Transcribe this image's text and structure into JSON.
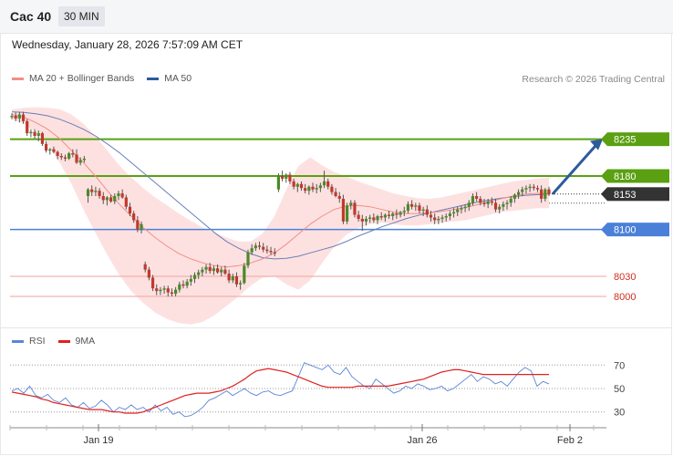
{
  "header": {
    "symbol": "Cac 40",
    "interval": "30 MIN",
    "datetime": "Wednesday, January 28, 2026 7:57:09 AM CET"
  },
  "main_legend": {
    "items": [
      {
        "label": "MA 20 + Bollinger Bands",
        "color": "#f28e86"
      },
      {
        "label": "MA 50",
        "color": "#2d5b9c"
      }
    ],
    "credit": "Research © 2026 Trading Central"
  },
  "rsi_legend": {
    "items": [
      {
        "label": "RSI",
        "color": "#5b86d6"
      },
      {
        "label": "9MA",
        "color": "#e02020"
      }
    ]
  },
  "colors": {
    "up": "#4a8a2a",
    "down": "#c0392b",
    "wick": "#555555",
    "resistance": "#5aa012",
    "support_blue": "#4a80d8",
    "support_red": "#f2a29a",
    "band_fill": "#fde1e1",
    "price_box": "#333333",
    "arrow": "#2d5b9c"
  },
  "chart_data": [
    {
      "type": "candlestick",
      "title": "Cac 40",
      "x_ticks": [
        "Jan 19",
        "Jan 26",
        "Feb 2"
      ],
      "ylim": [
        7955,
        8300
      ],
      "last_price": 8153,
      "levels": [
        {
          "value": 8235,
          "label": "8235",
          "kind": "resistance"
        },
        {
          "value": 8180,
          "label": "8180",
          "kind": "resistance"
        },
        {
          "value": 8153,
          "label": "8153",
          "kind": "last"
        },
        {
          "value": 8100,
          "label": "8100",
          "kind": "support"
        },
        {
          "value": 8030,
          "label": "8030",
          "kind": "support_minor"
        },
        {
          "value": 8000,
          "label": "8000",
          "kind": "support_minor"
        }
      ],
      "projection": {
        "from": 8153,
        "to": 8235
      },
      "ma50": [
        8276,
        8275,
        8273,
        8270,
        8265,
        8258,
        8250,
        8240,
        8228,
        8215,
        8200,
        8185,
        8170,
        8155,
        8140,
        8125,
        8110,
        8095,
        8082,
        8072,
        8064,
        8058,
        8056,
        8057,
        8060,
        8065,
        8070,
        8075,
        8082,
        8090,
        8097,
        8104,
        8110,
        8116,
        8121,
        8125,
        8129,
        8133,
        8137,
        8141,
        8144,
        8147,
        8149,
        8151,
        8152,
        8153
      ],
      "ma20": [
        8272,
        8268,
        8260,
        8250,
        8236,
        8218,
        8200,
        8180,
        8158,
        8138,
        8120,
        8103,
        8088,
        8075,
        8064,
        8056,
        8050,
        8046,
        8044,
        8046,
        8050,
        8056,
        8065,
        8078,
        8093,
        8108,
        8120,
        8130,
        8135,
        8136,
        8134,
        8130,
        8126,
        8124,
        8124,
        8125,
        8127,
        8130,
        8133,
        8137,
        8142,
        8146,
        8150,
        8153,
        8154,
        8154
      ],
      "bb_upper": [
        8280,
        8282,
        8283,
        8282,
        8280,
        8272,
        8258,
        8240,
        8218,
        8196,
        8178,
        8162,
        8148,
        8136,
        8124,
        8113,
        8103,
        8095,
        8088,
        8082,
        8082,
        8094,
        8120,
        8160,
        8195,
        8208,
        8196,
        8186,
        8180,
        8172,
        8166,
        8160,
        8154,
        8150,
        8147,
        8146,
        8148,
        8152,
        8156,
        8160,
        8164,
        8168,
        8172,
        8174,
        8176,
        8178
      ],
      "bb_lower": [
        8265,
        8258,
        8246,
        8228,
        8200,
        8168,
        8130,
        8095,
        8062,
        8032,
        8008,
        7990,
        7976,
        7966,
        7960,
        7958,
        7962,
        7972,
        7986,
        8000,
        8016,
        8028,
        8030,
        8018,
        8010,
        8024,
        8050,
        8074,
        8092,
        8102,
        8108,
        8110,
        8108,
        8106,
        8106,
        8108,
        8110,
        8112,
        8114,
        8118,
        8122,
        8126,
        8128,
        8130,
        8132,
        8132
      ],
      "ohlc": [
        [
          8268,
          8274,
          8265,
          8270
        ],
        [
          8270,
          8275,
          8262,
          8266
        ],
        [
          8266,
          8276,
          8260,
          8272
        ],
        [
          8272,
          8276,
          8258,
          8262
        ],
        [
          8262,
          8265,
          8240,
          8244
        ],
        [
          8244,
          8250,
          8238,
          8246
        ],
        [
          8246,
          8250,
          8236,
          8240
        ],
        [
          8240,
          8248,
          8232,
          8244
        ],
        [
          8244,
          8246,
          8225,
          8228
        ],
        [
          8228,
          8232,
          8215,
          8218
        ],
        [
          8218,
          8222,
          8212,
          8220
        ],
        [
          8220,
          8224,
          8214,
          8216
        ],
        [
          8216,
          8218,
          8205,
          8210
        ],
        [
          8210,
          8214,
          8204,
          8208
        ],
        [
          8208,
          8212,
          8202,
          8206
        ],
        [
          8206,
          8216,
          8204,
          8214
        ],
        [
          8214,
          8220,
          8208,
          8212
        ],
        [
          8212,
          8220,
          8198,
          8200
        ],
        [
          8200,
          8208,
          8196,
          8204
        ],
        [
          8204,
          8210,
          8200,
          8206
        ],
        [
          8150,
          8162,
          8140,
          8160
        ],
        [
          8160,
          8166,
          8150,
          8156
        ],
        [
          8156,
          8164,
          8150,
          8158
        ],
        [
          8158,
          8162,
          8146,
          8150
        ],
        [
          8150,
          8156,
          8138,
          8144
        ],
        [
          8144,
          8150,
          8136,
          8148
        ],
        [
          8148,
          8152,
          8140,
          8142
        ],
        [
          8142,
          8154,
          8138,
          8150
        ],
        [
          8150,
          8158,
          8144,
          8154
        ],
        [
          8154,
          8160,
          8146,
          8148
        ],
        [
          8148,
          8152,
          8130,
          8134
        ],
        [
          8134,
          8140,
          8120,
          8124
        ],
        [
          8124,
          8128,
          8110,
          8114
        ],
        [
          8114,
          8120,
          8096,
          8100
        ],
        [
          8100,
          8112,
          8094,
          8108
        ],
        [
          8048,
          8052,
          8036,
          8040
        ],
        [
          8040,
          8044,
          8024,
          8028
        ],
        [
          8028,
          8032,
          8008,
          8012
        ],
        [
          8012,
          8018,
          8002,
          8008
        ],
        [
          8008,
          8014,
          8002,
          8010
        ],
        [
          8010,
          8016,
          8004,
          8012
        ],
        [
          8012,
          8016,
          8000,
          8006
        ],
        [
          8006,
          8012,
          8000,
          8004
        ],
        [
          8004,
          8014,
          8000,
          8010
        ],
        [
          8010,
          8022,
          8006,
          8018
        ],
        [
          8018,
          8024,
          8012,
          8016
        ],
        [
          8016,
          8026,
          8012,
          8022
        ],
        [
          8022,
          8032,
          8016,
          8026
        ],
        [
          8026,
          8036,
          8020,
          8032
        ],
        [
          8032,
          8040,
          8026,
          8036
        ],
        [
          8036,
          8044,
          8030,
          8040
        ],
        [
          8040,
          8048,
          8034,
          8044
        ],
        [
          8044,
          8050,
          8034,
          8038
        ],
        [
          8038,
          8046,
          8032,
          8042
        ],
        [
          8042,
          8048,
          8034,
          8036
        ],
        [
          8036,
          8044,
          8030,
          8040
        ],
        [
          8040,
          8046,
          8032,
          8034
        ],
        [
          8034,
          8040,
          8020,
          8024
        ],
        [
          8024,
          8034,
          8020,
          8030
        ],
        [
          8030,
          8036,
          8014,
          8018
        ],
        [
          8018,
          8024,
          8010,
          8020
        ],
        [
          8020,
          8050,
          8018,
          8046
        ],
        [
          8046,
          8070,
          8042,
          8066
        ],
        [
          8066,
          8078,
          8062,
          8072
        ],
        [
          8072,
          8080,
          8068,
          8076
        ],
        [
          8076,
          8082,
          8070,
          8074
        ],
        [
          8074,
          8080,
          8066,
          8070
        ],
        [
          8070,
          8076,
          8064,
          8068
        ],
        [
          8068,
          8074,
          8062,
          8066
        ],
        [
          8066,
          8072,
          8060,
          8064
        ],
        [
          8160,
          8184,
          8156,
          8180
        ],
        [
          8180,
          8188,
          8172,
          8176
        ],
        [
          8176,
          8184,
          8170,
          8182
        ],
        [
          8182,
          8186,
          8168,
          8172
        ],
        [
          8172,
          8176,
          8160,
          8164
        ],
        [
          8164,
          8170,
          8156,
          8168
        ],
        [
          8168,
          8172,
          8158,
          8162
        ],
        [
          8162,
          8168,
          8154,
          8158
        ],
        [
          8158,
          8166,
          8152,
          8164
        ],
        [
          8164,
          8170,
          8156,
          8160
        ],
        [
          8160,
          8168,
          8154,
          8162
        ],
        [
          8162,
          8170,
          8156,
          8166
        ],
        [
          8166,
          8188,
          8162,
          8172
        ],
        [
          8172,
          8176,
          8160,
          8164
        ],
        [
          8164,
          8168,
          8152,
          8156
        ],
        [
          8156,
          8162,
          8148,
          8150
        ],
        [
          8150,
          8156,
          8140,
          8146
        ],
        [
          8146,
          8152,
          8108,
          8112
        ],
        [
          8112,
          8140,
          8108,
          8136
        ],
        [
          8136,
          8144,
          8130,
          8140
        ],
        [
          8140,
          8144,
          8118,
          8122
        ],
        [
          8122,
          8128,
          8112,
          8116
        ],
        [
          8116,
          8122,
          8098,
          8112
        ],
        [
          8112,
          8120,
          8106,
          8116
        ],
        [
          8116,
          8122,
          8110,
          8118
        ],
        [
          8118,
          8124,
          8110,
          8114
        ],
        [
          8114,
          8122,
          8108,
          8120
        ],
        [
          8120,
          8126,
          8114,
          8118
        ],
        [
          8118,
          8124,
          8112,
          8122
        ],
        [
          8122,
          8128,
          8116,
          8120
        ],
        [
          8120,
          8126,
          8114,
          8124
        ],
        [
          8124,
          8130,
          8116,
          8122
        ],
        [
          8122,
          8128,
          8118,
          8126
        ],
        [
          8126,
          8134,
          8120,
          8128
        ],
        [
          8128,
          8142,
          8124,
          8138
        ],
        [
          8138,
          8144,
          8130,
          8134
        ],
        [
          8134,
          8140,
          8128,
          8136
        ],
        [
          8136,
          8140,
          8124,
          8128
        ],
        [
          8128,
          8134,
          8120,
          8130
        ],
        [
          8130,
          8136,
          8118,
          8122
        ],
        [
          8122,
          8128,
          8112,
          8118
        ],
        [
          8118,
          8124,
          8108,
          8114
        ],
        [
          8114,
          8120,
          8108,
          8116
        ],
        [
          8116,
          8122,
          8110,
          8118
        ],
        [
          8118,
          8124,
          8112,
          8120
        ],
        [
          8120,
          8128,
          8114,
          8124
        ],
        [
          8124,
          8132,
          8118,
          8126
        ],
        [
          8126,
          8134,
          8120,
          8130
        ],
        [
          8130,
          8136,
          8124,
          8132
        ],
        [
          8132,
          8138,
          8126,
          8134
        ],
        [
          8134,
          8144,
          8128,
          8140
        ],
        [
          8140,
          8154,
          8136,
          8150
        ],
        [
          8150,
          8156,
          8142,
          8146
        ],
        [
          8146,
          8150,
          8136,
          8140
        ],
        [
          8140,
          8146,
          8134,
          8138
        ],
        [
          8138,
          8146,
          8132,
          8142
        ],
        [
          8142,
          8148,
          8136,
          8140
        ],
        [
          8140,
          8146,
          8126,
          8130
        ],
        [
          8130,
          8138,
          8124,
          8134
        ],
        [
          8134,
          8142,
          8128,
          8138
        ],
        [
          8138,
          8144,
          8130,
          8140
        ],
        [
          8140,
          8150,
          8134,
          8146
        ],
        [
          8146,
          8154,
          8140,
          8152
        ],
        [
          8152,
          8160,
          8146,
          8156
        ],
        [
          8156,
          8164,
          8150,
          8160
        ],
        [
          8160,
          8166,
          8154,
          8162
        ],
        [
          8162,
          8168,
          8156,
          8164
        ],
        [
          8164,
          8168,
          8158,
          8162
        ],
        [
          8162,
          8166,
          8156,
          8160
        ],
        [
          8160,
          8166,
          8140,
          8146
        ],
        [
          8146,
          8162,
          8142,
          8160
        ],
        [
          8160,
          8164,
          8150,
          8153
        ]
      ]
    },
    {
      "type": "line",
      "title": "RSI",
      "y_ticks": [
        "70",
        "50",
        "30"
      ],
      "ylim": [
        22,
        78
      ],
      "levels": [
        70,
        50,
        30
      ],
      "series": [
        {
          "name": "RSI",
          "values": [
            48,
            50,
            46,
            52,
            44,
            42,
            45,
            40,
            38,
            42,
            36,
            34,
            38,
            33,
            35,
            40,
            36,
            30,
            34,
            32,
            36,
            32,
            34,
            30,
            36,
            31,
            34,
            28,
            30,
            26,
            27,
            30,
            34,
            40,
            42,
            45,
            48,
            44,
            47,
            50,
            46,
            44,
            47,
            48,
            45,
            44,
            46,
            48,
            60,
            72,
            70,
            68,
            66,
            70,
            64,
            62,
            68,
            60,
            56,
            52,
            50,
            58,
            54,
            50,
            46,
            48,
            52,
            50,
            54,
            52,
            49,
            50,
            52,
            48,
            50,
            54,
            58,
            62,
            56,
            60,
            58,
            54,
            56,
            52,
            58,
            64,
            68,
            65,
            52,
            56,
            54
          ]
        },
        {
          "name": "9MA",
          "values": [
            47,
            46,
            45,
            44,
            43,
            41,
            40,
            38,
            37,
            36,
            35,
            34,
            33,
            32,
            32,
            32,
            31,
            30,
            30,
            29,
            29,
            29,
            30,
            32,
            34,
            36,
            38,
            40,
            42,
            44,
            45,
            46,
            46,
            46,
            47,
            48,
            50,
            52,
            55,
            58,
            62,
            65,
            66,
            67,
            66,
            65,
            64,
            62,
            60,
            58,
            56,
            54,
            52,
            51,
            51,
            51,
            51,
            51,
            52,
            52,
            52,
            52,
            52,
            52,
            53,
            54,
            55,
            56,
            57,
            58,
            60,
            62,
            64,
            65,
            66,
            66,
            65,
            64,
            63,
            62,
            62,
            62,
            62,
            62,
            62,
            62,
            62,
            62,
            62,
            62,
            62
          ]
        }
      ]
    }
  ]
}
